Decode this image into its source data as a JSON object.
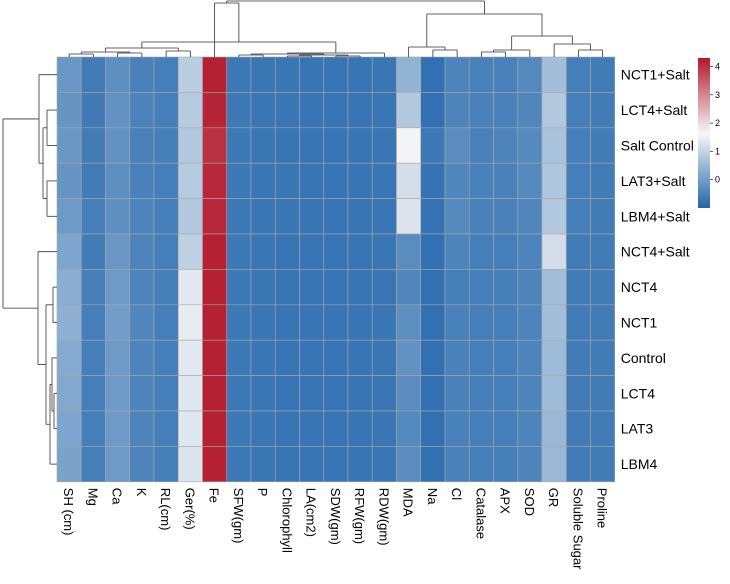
{
  "chart_data": {
    "type": "heatmap",
    "title": "",
    "rows": [
      "NCT1+Salt",
      "LCT4+Salt",
      "Salt Control",
      "LAT3+Salt",
      "LBM4+Salt",
      "NCT4+Salt",
      "NCT4",
      "NCT1",
      "Control",
      "LCT4",
      "LAT3",
      "LBM4"
    ],
    "columns": [
      "SH (cm)",
      "Mg",
      "Ca",
      "K",
      "RL(cm)",
      "Ger(%)",
      "Fe",
      "SFW(gm)",
      "P",
      "Chlorophyll",
      "LA(cm2)",
      "SDW(gm)",
      "RFW(gm)",
      "RDW(gm)",
      "MDA",
      "Na",
      "Cl",
      "Catalase",
      "APX",
      "SOD",
      "GR",
      "Soluble Sugar",
      "Proline"
    ],
    "values": [
      [
        -0.1,
        -0.6,
        -0.25,
        -0.5,
        -0.55,
        0.9,
        4.2,
        -0.65,
        -0.7,
        -0.7,
        -0.72,
        -0.72,
        -0.72,
        -0.7,
        0.4,
        -0.8,
        -0.45,
        -0.5,
        -0.5,
        -0.35,
        0.6,
        -0.55,
        -0.6
      ],
      [
        -0.15,
        -0.62,
        -0.2,
        -0.48,
        -0.55,
        0.85,
        4.15,
        -0.65,
        -0.7,
        -0.7,
        -0.72,
        -0.72,
        -0.72,
        -0.7,
        0.8,
        -0.8,
        -0.45,
        -0.5,
        -0.5,
        -0.4,
        0.8,
        -0.55,
        -0.6
      ],
      [
        -0.1,
        -0.6,
        -0.2,
        -0.5,
        -0.55,
        0.8,
        4.0,
        -0.65,
        -0.7,
        -0.72,
        -0.72,
        -0.72,
        -0.72,
        -0.7,
        1.6,
        -0.65,
        -0.3,
        -0.5,
        -0.45,
        -0.35,
        0.7,
        -0.55,
        -0.6
      ],
      [
        -0.15,
        -0.6,
        -0.25,
        -0.5,
        -0.55,
        0.85,
        4.1,
        -0.65,
        -0.7,
        -0.7,
        -0.72,
        -0.72,
        -0.72,
        -0.7,
        1.2,
        -0.75,
        -0.4,
        -0.5,
        -0.5,
        -0.35,
        0.75,
        -0.55,
        -0.6
      ],
      [
        -0.05,
        -0.55,
        -0.25,
        -0.45,
        -0.55,
        0.8,
        4.1,
        -0.65,
        -0.7,
        -0.7,
        -0.72,
        -0.72,
        -0.72,
        -0.7,
        1.3,
        -0.75,
        -0.35,
        -0.5,
        -0.5,
        -0.4,
        0.8,
        -0.55,
        -0.6
      ],
      [
        0.15,
        -0.6,
        -0.1,
        -0.45,
        -0.55,
        0.95,
        4.2,
        -0.65,
        -0.7,
        -0.72,
        -0.72,
        -0.72,
        -0.72,
        -0.7,
        -0.3,
        -0.8,
        -0.45,
        -0.55,
        -0.55,
        -0.45,
        1.2,
        -0.6,
        -0.6
      ],
      [
        0.3,
        -0.55,
        -0.05,
        -0.45,
        -0.55,
        1.4,
        4.2,
        -0.65,
        -0.7,
        -0.72,
        -0.72,
        -0.72,
        -0.72,
        -0.7,
        -0.4,
        -0.8,
        -0.55,
        -0.55,
        -0.55,
        -0.45,
        0.6,
        -0.6,
        -0.6
      ],
      [
        0.35,
        -0.55,
        0.0,
        -0.4,
        -0.55,
        1.45,
        4.2,
        -0.65,
        -0.7,
        -0.72,
        -0.72,
        -0.72,
        -0.72,
        -0.7,
        -0.25,
        -0.8,
        -0.5,
        -0.55,
        -0.55,
        -0.45,
        0.6,
        -0.6,
        -0.6
      ],
      [
        0.25,
        -0.55,
        -0.05,
        -0.45,
        -0.55,
        1.4,
        4.2,
        -0.65,
        -0.7,
        -0.72,
        -0.72,
        -0.72,
        -0.72,
        -0.7,
        -0.2,
        -0.8,
        -0.5,
        -0.55,
        -0.55,
        -0.45,
        0.55,
        -0.6,
        -0.6
      ],
      [
        0.2,
        -0.55,
        -0.05,
        -0.45,
        -0.55,
        1.35,
        4.2,
        -0.65,
        -0.7,
        -0.72,
        -0.72,
        -0.72,
        -0.72,
        -0.7,
        -0.3,
        -0.8,
        -0.5,
        -0.55,
        -0.55,
        -0.45,
        0.55,
        -0.6,
        -0.6
      ],
      [
        0.15,
        -0.55,
        -0.05,
        -0.45,
        -0.55,
        1.35,
        4.2,
        -0.65,
        -0.7,
        -0.72,
        -0.72,
        -0.72,
        -0.72,
        -0.7,
        -0.35,
        -0.8,
        -0.5,
        -0.55,
        -0.55,
        -0.45,
        0.5,
        -0.6,
        -0.6
      ],
      [
        0.1,
        -0.55,
        -0.05,
        -0.45,
        -0.55,
        1.3,
        4.2,
        -0.65,
        -0.7,
        -0.72,
        -0.72,
        -0.72,
        -0.72,
        -0.7,
        -0.3,
        -0.8,
        -0.5,
        -0.55,
        -0.55,
        -0.45,
        0.5,
        -0.6,
        -0.6
      ]
    ],
    "scale": {
      "min": -1.0,
      "max": 4.3,
      "ticks": [
        0,
        1,
        2,
        3,
        4
      ],
      "tick_labels": [
        "0",
        "1",
        "2",
        "3",
        "4"
      ]
    },
    "colors": {
      "low": "#2166ac",
      "mid": "#f7f7f7",
      "high": "#b2182b",
      "grid": "#a8a8a8",
      "dendrogram": "#333333"
    },
    "legend": "right",
    "clustering": "rows and columns (dendrograms shown left and top)"
  }
}
